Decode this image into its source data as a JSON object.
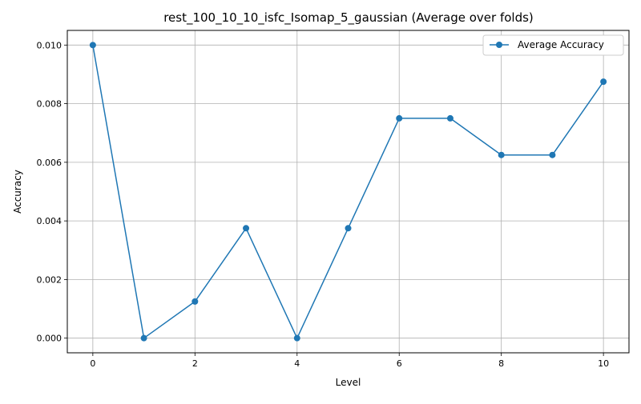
{
  "chart_data": {
    "type": "line",
    "title": "rest_100_10_10_isfc_Isomap_5_gaussian (Average over folds)",
    "xlabel": "Level",
    "ylabel": "Accuracy",
    "xlim": [
      -0.5,
      10.5
    ],
    "ylim": [
      -0.0005,
      0.0105
    ],
    "xticks": [
      0,
      2,
      4,
      6,
      8,
      10
    ],
    "xtick_labels": [
      "0",
      "2",
      "4",
      "6",
      "8",
      "10"
    ],
    "yticks": [
      0.0,
      0.002,
      0.004,
      0.006,
      0.008,
      0.01
    ],
    "ytick_labels": [
      "0.000",
      "0.002",
      "0.004",
      "0.006",
      "0.008",
      "0.010"
    ],
    "grid": true,
    "legend_position": "top-right",
    "series": [
      {
        "name": "Average Accuracy",
        "color": "#1f77b4",
        "marker": "circle",
        "x": [
          0,
          1,
          2,
          3,
          4,
          5,
          6,
          7,
          8,
          9,
          10
        ],
        "y": [
          0.01,
          0.0,
          0.00125,
          0.00375,
          0.0,
          0.00375,
          0.0075,
          0.0075,
          0.00625,
          0.00625,
          0.00875
        ]
      }
    ]
  }
}
